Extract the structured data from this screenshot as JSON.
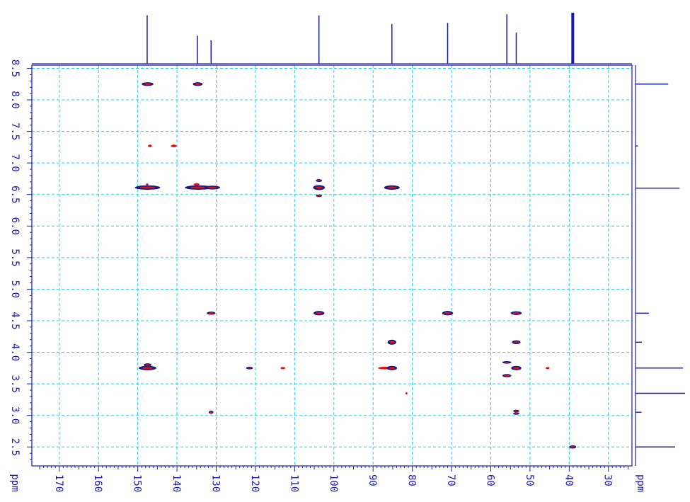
{
  "chart_data": {
    "type": "scatter",
    "experiment": "2D NMR correlation (HSQC/HMBC style contour plot)",
    "x_axis": {
      "label": "ppm",
      "ticks": [
        170,
        160,
        150,
        140,
        130,
        120,
        110,
        100,
        90,
        80,
        70,
        60,
        50,
        40,
        30
      ],
      "range": [
        177,
        24
      ],
      "direction": "decreasing"
    },
    "y_axis": {
      "label": "ppm",
      "ticks": [
        8.5,
        8.0,
        7.5,
        7.0,
        6.5,
        6.0,
        5.5,
        5.0,
        4.5,
        4.0,
        3.5,
        3.0,
        2.5
      ],
      "range": [
        8.55,
        2.2
      ],
      "direction": "decreasing"
    },
    "grid": true,
    "grid_color": "#22d0e8",
    "axis_color": "#1a1aa8",
    "contour_color_positive": "#1a1a80",
    "contour_color_negative": "#e01010",
    "f2_projection_peaks_ppm": [
      {
        "ppm": 147.6,
        "height": 0.95
      },
      {
        "ppm": 134.8,
        "height": 0.55
      },
      {
        "ppm": 131.3,
        "height": 0.46
      },
      {
        "ppm": 103.8,
        "height": 0.95
      },
      {
        "ppm": 85.2,
        "height": 0.78
      },
      {
        "ppm": 71.0,
        "height": 0.8
      },
      {
        "ppm": 55.9,
        "height": 0.97
      },
      {
        "ppm": 53.5,
        "height": 0.61
      },
      {
        "ppm": 39.1,
        "height": 1.0
      }
    ],
    "f1_projection_peaks_ppm": [
      {
        "ppm": 8.25,
        "height": 0.66
      },
      {
        "ppm": 7.27,
        "height": 0.05
      },
      {
        "ppm": 6.6,
        "height": 0.89
      },
      {
        "ppm": 4.62,
        "height": 0.27
      },
      {
        "ppm": 4.16,
        "height": 0.13
      },
      {
        "ppm": 3.75,
        "height": 0.96
      },
      {
        "ppm": 3.35,
        "height": 1.0
      },
      {
        "ppm": 3.05,
        "height": 0.12
      },
      {
        "ppm": 2.5,
        "height": 0.8
      }
    ],
    "cross_peaks": [
      {
        "x": 147.5,
        "y": 8.25,
        "w": 3.0,
        "h": 0.03
      },
      {
        "x": 134.7,
        "y": 8.25,
        "w": 2.5,
        "h": 0.03
      },
      {
        "x": 146.9,
        "y": 7.27,
        "w": 1.0,
        "h": 0.02,
        "sign": "neg"
      },
      {
        "x": 140.8,
        "y": 7.27,
        "w": 1.5,
        "h": 0.02,
        "sign": "neg"
      },
      {
        "x": 147.5,
        "y": 6.61,
        "w": 6.5,
        "h": 0.035
      },
      {
        "x": 147.6,
        "y": 6.66,
        "w": 0.6,
        "h": 0.015,
        "sign": "neg"
      },
      {
        "x": 134.5,
        "y": 6.61,
        "w": 7.0,
        "h": 0.035
      },
      {
        "x": 131.0,
        "y": 6.61,
        "w": 4.0,
        "h": 0.03
      },
      {
        "x": 135.0,
        "y": 6.66,
        "w": 1.5,
        "h": 0.02,
        "sign": "neg"
      },
      {
        "x": 103.8,
        "y": 6.72,
        "w": 1.6,
        "h": 0.022
      },
      {
        "x": 103.8,
        "y": 6.61,
        "w": 3.0,
        "h": 0.04
      },
      {
        "x": 103.8,
        "y": 6.48,
        "w": 1.6,
        "h": 0.02
      },
      {
        "x": 85.2,
        "y": 6.61,
        "w": 4.0,
        "h": 0.035
      },
      {
        "x": 131.3,
        "y": 4.62,
        "w": 2.2,
        "h": 0.025
      },
      {
        "x": 103.8,
        "y": 4.62,
        "w": 2.8,
        "h": 0.035
      },
      {
        "x": 71.0,
        "y": 4.62,
        "w": 2.8,
        "h": 0.035
      },
      {
        "x": 53.5,
        "y": 4.62,
        "w": 2.8,
        "h": 0.03
      },
      {
        "x": 85.2,
        "y": 4.16,
        "w": 2.2,
        "h": 0.04
      },
      {
        "x": 53.5,
        "y": 4.16,
        "w": 2.2,
        "h": 0.03
      },
      {
        "x": 147.5,
        "y": 3.8,
        "w": 2.0,
        "h": 0.025
      },
      {
        "x": 147.5,
        "y": 3.75,
        "w": 4.5,
        "h": 0.035
      },
      {
        "x": 121.5,
        "y": 3.75,
        "w": 1.8,
        "h": 0.02
      },
      {
        "x": 113.0,
        "y": 3.75,
        "w": 1.2,
        "h": 0.015,
        "sign": "neg"
      },
      {
        "x": 87.0,
        "y": 3.75,
        "w": 3.5,
        "h": 0.02,
        "sign": "neg"
      },
      {
        "x": 85.2,
        "y": 3.75,
        "w": 2.6,
        "h": 0.035
      },
      {
        "x": 55.9,
        "y": 3.84,
        "w": 2.3,
        "h": 0.02
      },
      {
        "x": 53.5,
        "y": 3.75,
        "w": 2.6,
        "h": 0.035
      },
      {
        "x": 45.5,
        "y": 3.75,
        "w": 1.0,
        "h": 0.015,
        "sign": "neg"
      },
      {
        "x": 55.9,
        "y": 3.63,
        "w": 2.3,
        "h": 0.025
      },
      {
        "x": 81.5,
        "y": 3.35,
        "w": 0.5,
        "h": 0.012,
        "sign": "neg"
      },
      {
        "x": 131.3,
        "y": 3.05,
        "w": 1.2,
        "h": 0.025
      },
      {
        "x": 53.5,
        "y": 3.07,
        "w": 1.6,
        "h": 0.02
      },
      {
        "x": 53.5,
        "y": 3.03,
        "w": 1.6,
        "h": 0.02
      },
      {
        "x": 39.1,
        "y": 2.5,
        "w": 1.8,
        "h": 0.025
      }
    ]
  }
}
